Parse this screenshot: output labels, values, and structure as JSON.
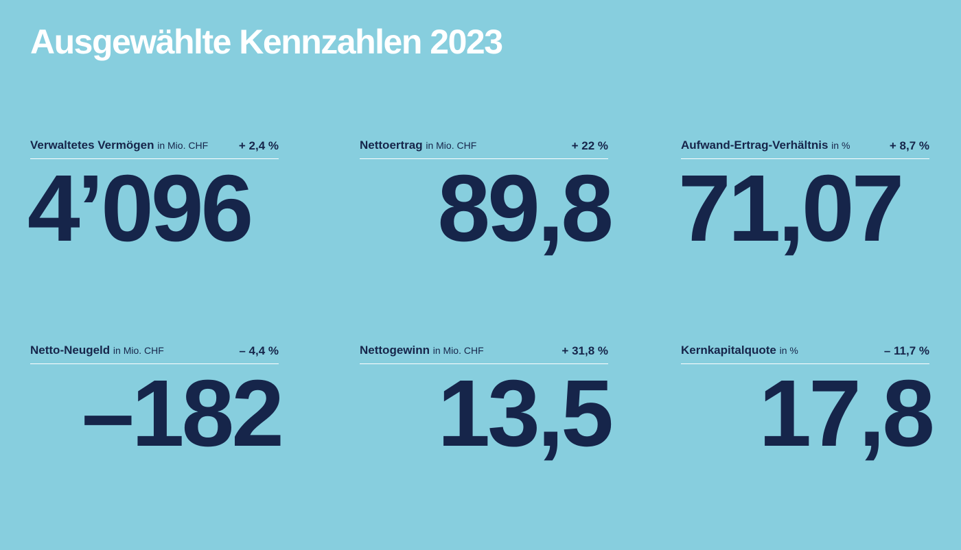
{
  "title": "Ausgewählte Kennzahlen 2023",
  "kpis": [
    {
      "label": "Verwaltetes Vermögen",
      "unit": "in Mio. CHF",
      "change": "+ 2,4 %",
      "value": "4’096"
    },
    {
      "label": "Nettoertrag",
      "unit": "in Mio. CHF",
      "change": "+ 22 %",
      "value": "89,8"
    },
    {
      "label": "Aufwand-Ertrag-Verhältnis",
      "unit": "in %",
      "change": "+ 8,7 %",
      "value": "71,07"
    },
    {
      "label": "Netto-Neugeld",
      "unit": "in Mio. CHF",
      "change": "– 4,4 %",
      "value": "–182"
    },
    {
      "label": "Nettogewinn",
      "unit": "in Mio. CHF",
      "change": "+ 31,8 %",
      "value": "13,5"
    },
    {
      "label": "Kernkapitalquote",
      "unit": "in %",
      "change": "– 11,7 %",
      "value": "17,8"
    }
  ],
  "colors": {
    "background": "#87cede",
    "text": "#16254a",
    "title": "#ffffff",
    "rule": "#ffffff"
  }
}
